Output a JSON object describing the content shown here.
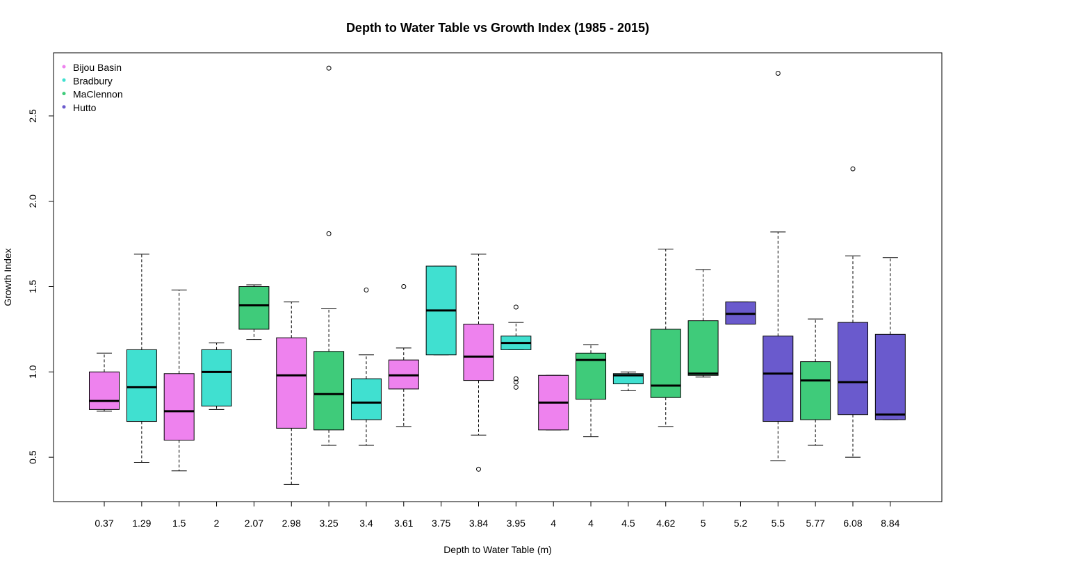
{
  "chart_data": {
    "type": "boxplot",
    "title": "Depth to Water Table vs Growth Index (1985 - 2015)",
    "xlabel": "Depth to Water Table (m)",
    "ylabel": "Growth Index",
    "ylim": [
      0.24,
      2.87
    ],
    "yticks": [
      0.5,
      1.0,
      1.5,
      2.0,
      2.5
    ],
    "ytick_labels": [
      "0.5",
      "1.0",
      "1.5",
      "2.0",
      "2.5"
    ],
    "grid": false,
    "legend_position": "top-left",
    "legend": [
      {
        "name": "Bijou Basin",
        "color": "#EE82EE"
      },
      {
        "name": "Bradbury",
        "color": "#40E0D0"
      },
      {
        "name": "MaClennon",
        "color": "#3FCB7A"
      },
      {
        "name": "Hutto",
        "color": "#6A5ACD"
      }
    ],
    "categories": [
      "0.37",
      "1.29",
      "1.5",
      "2",
      "2.07",
      "2.98",
      "3.25",
      "3.4",
      "3.61",
      "3.75",
      "3.84",
      "3.95",
      "4",
      "4",
      "4.5",
      "4.62",
      "5",
      "5.2",
      "5.5",
      "5.77",
      "6.08",
      "8.84"
    ],
    "boxes": [
      {
        "site": "Bijou Basin",
        "whisker_low": 0.77,
        "q1": 0.78,
        "median": 0.83,
        "q3": 1.0,
        "whisker_high": 1.11,
        "outliers": []
      },
      {
        "site": "Bradbury",
        "whisker_low": 0.47,
        "q1": 0.71,
        "median": 0.91,
        "q3": 1.13,
        "whisker_high": 1.69,
        "outliers": []
      },
      {
        "site": "Bijou Basin",
        "whisker_low": 0.42,
        "q1": 0.6,
        "median": 0.77,
        "q3": 0.99,
        "whisker_high": 1.48,
        "outliers": []
      },
      {
        "site": "Bradbury",
        "whisker_low": 0.78,
        "q1": 0.8,
        "median": 1.0,
        "q3": 1.13,
        "whisker_high": 1.17,
        "outliers": []
      },
      {
        "site": "MaClennon",
        "whisker_low": 1.19,
        "q1": 1.25,
        "median": 1.39,
        "q3": 1.5,
        "whisker_high": 1.51,
        "outliers": []
      },
      {
        "site": "Bijou Basin",
        "whisker_low": 0.34,
        "q1": 0.67,
        "median": 0.98,
        "q3": 1.2,
        "whisker_high": 1.41,
        "outliers": []
      },
      {
        "site": "MaClennon",
        "whisker_low": 0.57,
        "q1": 0.66,
        "median": 0.87,
        "q3": 1.12,
        "whisker_high": 1.37,
        "outliers": [
          1.81,
          2.78
        ]
      },
      {
        "site": "Bradbury",
        "whisker_low": 0.57,
        "q1": 0.72,
        "median": 0.82,
        "q3": 0.96,
        "whisker_high": 1.1,
        "outliers": [
          1.48
        ]
      },
      {
        "site": "Bijou Basin",
        "whisker_low": 0.68,
        "q1": 0.9,
        "median": 0.98,
        "q3": 1.07,
        "whisker_high": 1.14,
        "outliers": [
          1.5
        ]
      },
      {
        "site": "Bradbury",
        "whisker_low": 1.1,
        "q1": 1.1,
        "median": 1.36,
        "q3": 1.62,
        "whisker_high": 1.62,
        "outliers": []
      },
      {
        "site": "Bijou Basin",
        "whisker_low": 0.63,
        "q1": 0.95,
        "median": 1.09,
        "q3": 1.28,
        "whisker_high": 1.69,
        "outliers": [
          0.43
        ]
      },
      {
        "site": "Bradbury",
        "whisker_low": 1.13,
        "q1": 1.13,
        "median": 1.17,
        "q3": 1.21,
        "whisker_high": 1.29,
        "outliers": [
          1.38,
          0.96,
          0.94,
          0.91
        ]
      },
      {
        "site": "Bijou Basin",
        "whisker_low": 0.66,
        "q1": 0.66,
        "median": 0.82,
        "q3": 0.98,
        "whisker_high": 0.98,
        "outliers": []
      },
      {
        "site": "MaClennon",
        "whisker_low": 0.62,
        "q1": 0.84,
        "median": 1.07,
        "q3": 1.11,
        "whisker_high": 1.16,
        "outliers": []
      },
      {
        "site": "Bradbury",
        "whisker_low": 0.89,
        "q1": 0.93,
        "median": 0.98,
        "q3": 0.99,
        "whisker_high": 1.0,
        "outliers": []
      },
      {
        "site": "MaClennon",
        "whisker_low": 0.68,
        "q1": 0.85,
        "median": 0.92,
        "q3": 1.25,
        "whisker_high": 1.72,
        "outliers": []
      },
      {
        "site": "MaClennon",
        "whisker_low": 0.97,
        "q1": 0.98,
        "median": 0.99,
        "q3": 1.3,
        "whisker_high": 1.6,
        "outliers": []
      },
      {
        "site": "Hutto",
        "whisker_low": 1.28,
        "q1": 1.28,
        "median": 1.34,
        "q3": 1.41,
        "whisker_high": 1.41,
        "outliers": []
      },
      {
        "site": "Hutto",
        "whisker_low": 0.48,
        "q1": 0.71,
        "median": 0.99,
        "q3": 1.21,
        "whisker_high": 1.82,
        "outliers": [
          2.75
        ]
      },
      {
        "site": "MaClennon",
        "whisker_low": 0.57,
        "q1": 0.72,
        "median": 0.95,
        "q3": 1.06,
        "whisker_high": 1.31,
        "outliers": []
      },
      {
        "site": "Hutto",
        "whisker_low": 0.5,
        "q1": 0.75,
        "median": 0.94,
        "q3": 1.29,
        "whisker_high": 1.68,
        "outliers": [
          2.19
        ]
      },
      {
        "site": "Hutto",
        "whisker_low": 0.72,
        "q1": 0.72,
        "median": 0.75,
        "q3": 1.22,
        "whisker_high": 1.67,
        "outliers": []
      }
    ]
  }
}
